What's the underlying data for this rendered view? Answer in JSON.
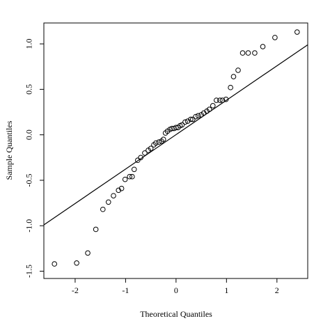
{
  "chart_data": {
    "type": "scatter",
    "x_label": "Theoretical Quantiles",
    "y_label": "Sample Quantiles",
    "xlim": [
      -2.62,
      2.61
    ],
    "ylim": [
      -1.58,
      1.23
    ],
    "xticks": [
      -2,
      -1,
      0,
      1,
      2
    ],
    "yticks": [
      {
        "value": -1.5,
        "label": "-1.5"
      },
      {
        "value": -1,
        "label": "-1.0"
      },
      -0.5,
      {
        "value": 0,
        "label": "0.0"
      },
      0.5,
      {
        "value": 1,
        "label": "1.0"
      }
    ],
    "color": "#000000",
    "x": [
      -2.41,
      -1.97,
      -1.75,
      -1.59,
      -1.45,
      -1.34,
      -1.24,
      -1.14,
      -1.08,
      -1.01,
      -0.92,
      -0.87,
      -0.83,
      -0.76,
      -0.7,
      -0.62,
      -0.55,
      -0.5,
      -0.44,
      -0.4,
      -0.34,
      -0.29,
      -0.25,
      -0.21,
      -0.17,
      -0.12,
      -0.08,
      -0.04,
      0,
      0.04,
      0.08,
      0.12,
      0.18,
      0.23,
      0.29,
      0.33,
      0.39,
      0.44,
      0.5,
      0.55,
      0.61,
      0.66,
      0.73,
      0.8,
      0.87,
      0.92,
      0.99,
      1.08,
      1.14,
      1.23,
      1.32,
      1.43,
      1.56,
      1.72,
      1.96,
      2.4
    ],
    "values": [
      -1.42,
      -1.41,
      -1.3,
      -1.04,
      -0.82,
      -0.74,
      -0.67,
      -0.61,
      -0.59,
      -0.49,
      -0.46,
      -0.46,
      -0.38,
      -0.28,
      -0.25,
      -0.2,
      -0.17,
      -0.15,
      -0.11,
      -0.09,
      -0.08,
      -0.07,
      -0.05,
      0.02,
      0.04,
      0.06,
      0.07,
      0.07,
      0.08,
      0.08,
      0.1,
      0.11,
      0.14,
      0.15,
      0.17,
      0.17,
      0.2,
      0.21,
      0.22,
      0.24,
      0.26,
      0.28,
      0.32,
      0.38,
      0.38,
      0.38,
      0.39,
      0.52,
      0.64,
      0.71,
      0.9,
      0.9,
      0.9,
      0.97,
      1.07,
      1.13
    ],
    "reference_line": {
      "x": [
        -2.62,
        2.61
      ],
      "y": [
        -0.99,
        0.99
      ]
    }
  }
}
